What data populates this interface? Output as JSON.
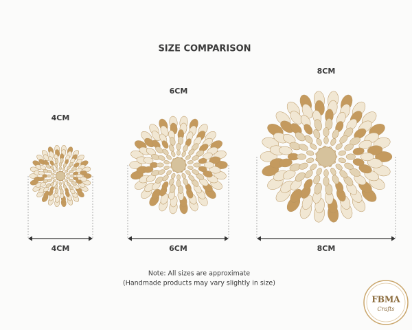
{
  "title": "SIZE COMPARISON",
  "items": [
    {
      "top_label": "4CM",
      "bottom_label": "4CM"
    },
    {
      "top_label": "6CM",
      "bottom_label": "6CM"
    },
    {
      "top_label": "8CM",
      "bottom_label": "8CM"
    }
  ],
  "note": {
    "line1": "Note: All sizes are approximate",
    "line2": "(Handmade products may vary slightly in size)"
  },
  "logo": {
    "name": "FBMA",
    "tagline": "Crafts"
  }
}
